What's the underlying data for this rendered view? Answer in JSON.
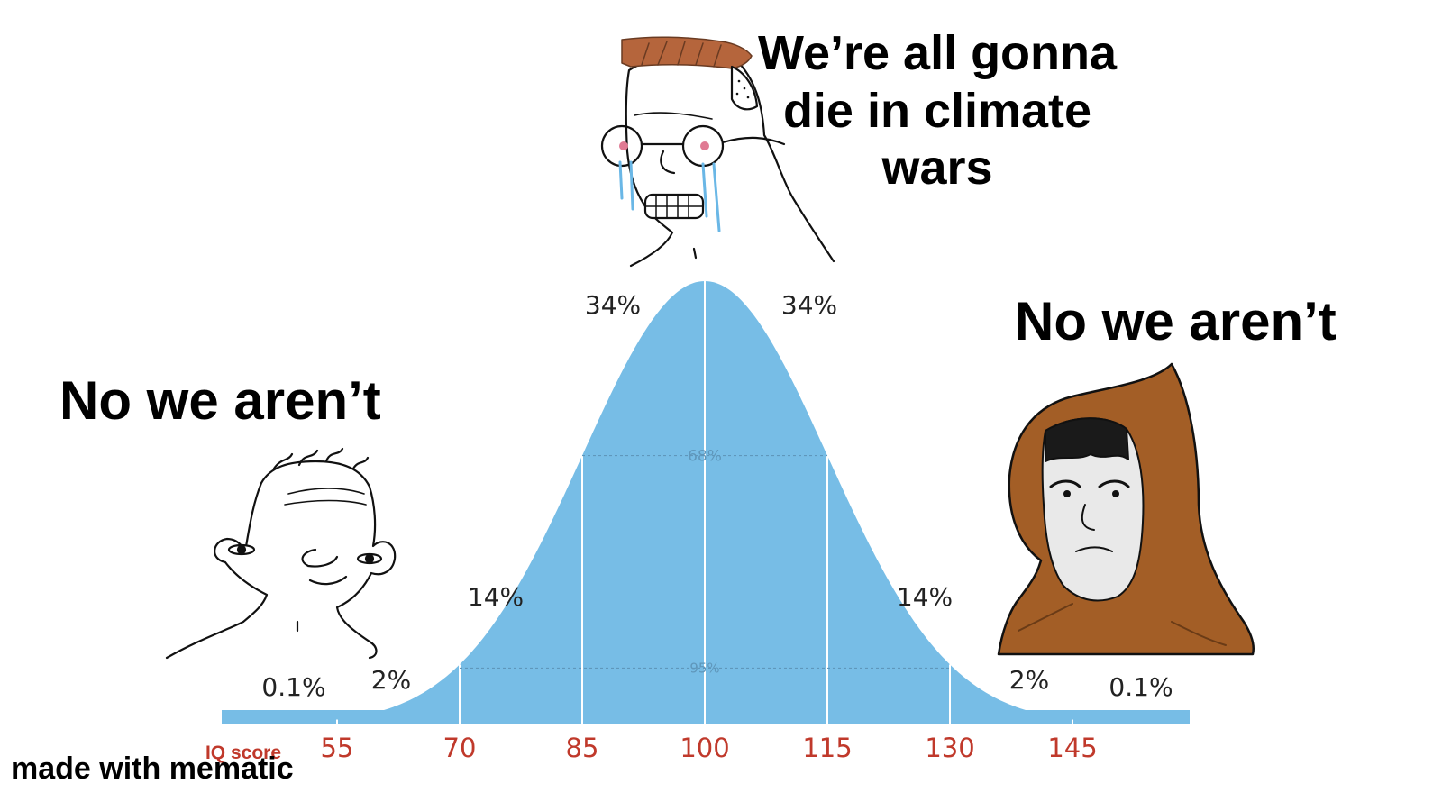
{
  "captions": {
    "center": [
      "We’re all gonna",
      "die in climate",
      "wars"
    ],
    "left": "No we aren’t",
    "right": "No we aren’t"
  },
  "curve": {
    "segment_percents": [
      "0.1%",
      "2%",
      "14%",
      "34%",
      "34%",
      "14%",
      "2%",
      "0.1%"
    ],
    "inner_labels": {
      "band68": "68%",
      "band95": "95%"
    },
    "axis_label": "IQ score",
    "ticks": [
      55,
      70,
      85,
      100,
      115,
      130,
      145
    ],
    "mean": 100,
    "sd": 15,
    "fill_color": "#77bde6",
    "tick_color": "#c0392b"
  },
  "characters": [
    {
      "id": "wojak-low",
      "description_icon": "wojak-face-icon"
    },
    {
      "id": "wojak-crying",
      "description_icon": "crying-wojak-icon"
    },
    {
      "id": "wojak-hooded",
      "description_icon": "hooded-wojak-icon"
    }
  ],
  "watermark": "made with mematic"
}
